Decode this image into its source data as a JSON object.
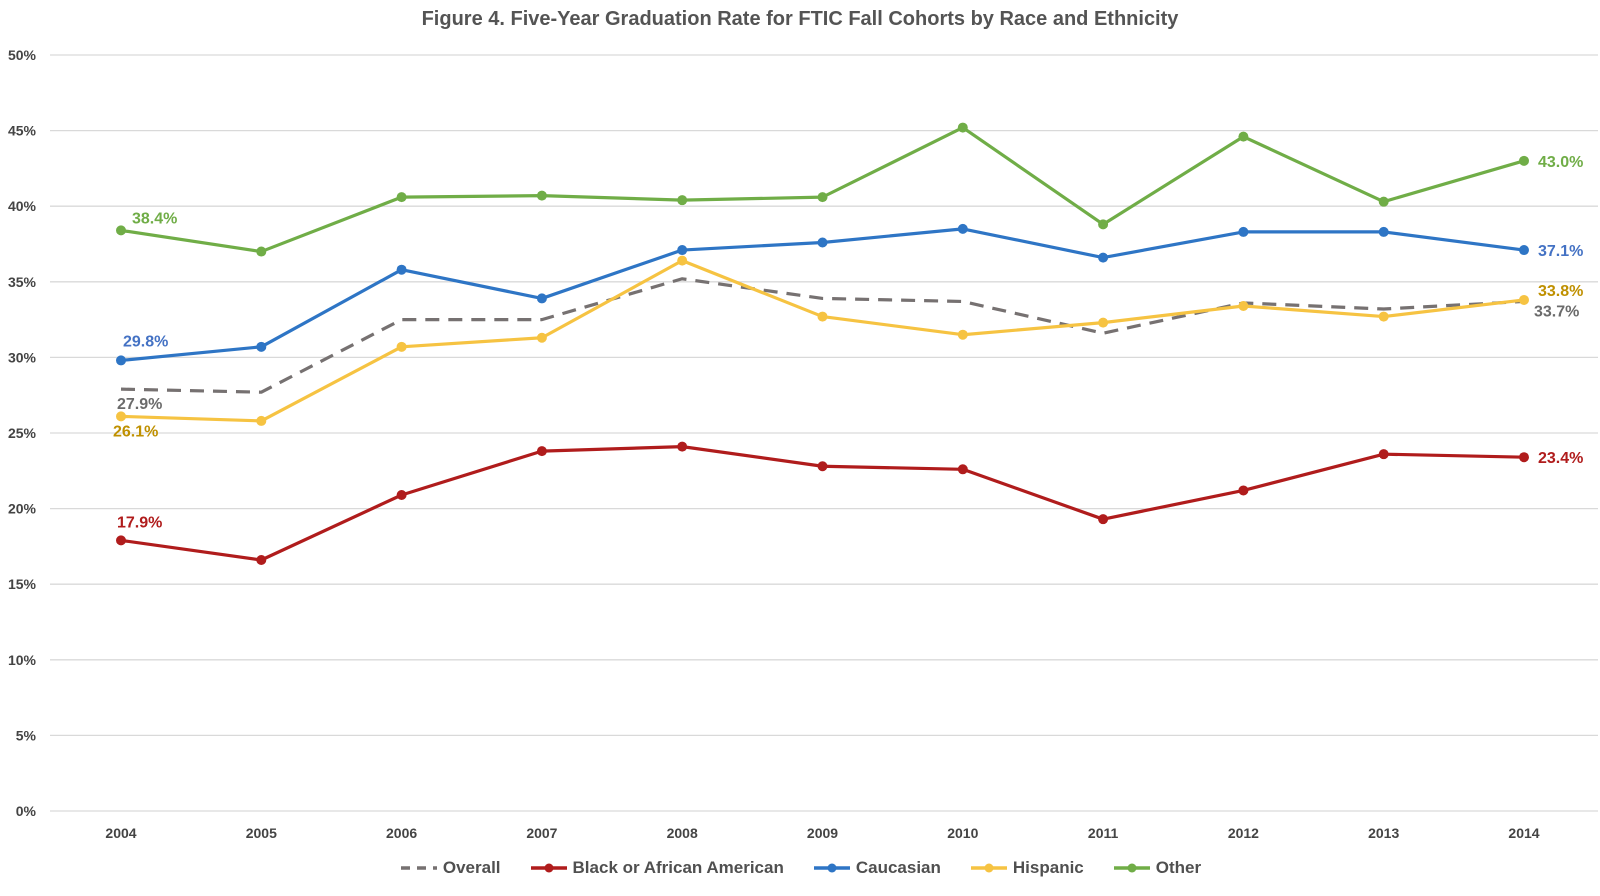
{
  "chart_data": {
    "type": "line",
    "title": "Figure 4. Five-Year Graduation Rate for FTIC Fall Cohorts by Race and Ethnicity",
    "xlabel": "",
    "ylabel": "",
    "categories": [
      "2004",
      "2005",
      "2006",
      "2007",
      "2008",
      "2009",
      "2010",
      "2011",
      "2012",
      "2013",
      "2014"
    ],
    "ylim": [
      0,
      50
    ],
    "yticks": [
      0,
      5,
      10,
      15,
      20,
      25,
      30,
      35,
      40,
      45,
      50
    ],
    "ytick_labels": [
      "0%",
      "5%",
      "10%",
      "15%",
      "20%",
      "25%",
      "30%",
      "35%",
      "40%",
      "45%",
      "50%"
    ],
    "grid": true,
    "legend_position": "bottom",
    "series": [
      {
        "name": "Overall",
        "color": "#767171",
        "label_color": "#6b6b6b",
        "dashed": true,
        "markers": false,
        "values": [
          27.9,
          27.7,
          32.5,
          32.5,
          35.2,
          33.9,
          33.7,
          31.6,
          33.6,
          33.2,
          33.7
        ],
        "labels": {
          "first": "27.9%",
          "last": "33.7%"
        }
      },
      {
        "name": "Black or African American",
        "color": "#B01C1C",
        "label_color": "#B01C1C",
        "dashed": false,
        "markers": true,
        "values": [
          17.9,
          16.6,
          20.9,
          23.8,
          24.1,
          22.8,
          22.6,
          19.3,
          21.2,
          23.6,
          23.4
        ],
        "labels": {
          "first": "17.9%",
          "last": "23.4%"
        }
      },
      {
        "name": "Caucasian",
        "color": "#2E75C5",
        "label_color": "#4472C4",
        "dashed": false,
        "markers": true,
        "values": [
          29.8,
          30.7,
          35.8,
          33.9,
          37.1,
          37.6,
          38.5,
          36.6,
          38.3,
          38.3,
          37.1
        ],
        "labels": {
          "first": "29.8%",
          "last": "37.1%"
        }
      },
      {
        "name": "Hispanic",
        "color": "#F6C342",
        "label_color": "#BF9000",
        "dashed": false,
        "markers": true,
        "values": [
          26.1,
          25.8,
          30.7,
          31.3,
          36.4,
          32.7,
          31.5,
          32.3,
          33.4,
          32.7,
          33.8
        ],
        "labels": {
          "first": "26.1%",
          "last": "33.8%"
        }
      },
      {
        "name": "Other",
        "color": "#70AD47",
        "label_color": "#70AD47",
        "dashed": false,
        "markers": true,
        "values": [
          38.4,
          37.0,
          40.6,
          40.7,
          40.4,
          40.6,
          45.2,
          38.8,
          44.6,
          40.3,
          43.0
        ],
        "labels": {
          "first": "38.4%",
          "last": "43.0%"
        }
      }
    ]
  }
}
